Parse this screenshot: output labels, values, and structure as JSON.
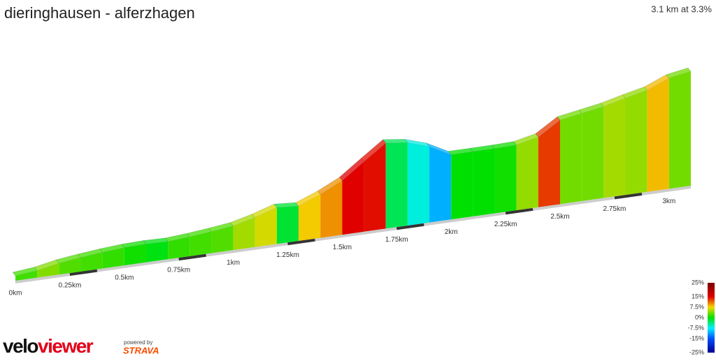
{
  "header": {
    "title": "dieringhausen - alferzhagen",
    "summary": "3.1 km at 3.3%"
  },
  "chart_data": {
    "type": "profile",
    "x": [
      0,
      0.1,
      0.2,
      0.3,
      0.4,
      0.5,
      0.6,
      0.7,
      0.8,
      0.9,
      1.0,
      1.1,
      1.2,
      1.3,
      1.4,
      1.5,
      1.6,
      1.7,
      1.8,
      1.9,
      2.0,
      2.1,
      2.2,
      2.3,
      2.4,
      2.5,
      2.6,
      2.7,
      2.8,
      2.9,
      3.0
    ],
    "values": [
      2,
      4,
      2.5,
      2,
      1.5,
      0.5,
      -0.5,
      1.5,
      2,
      2.5,
      5,
      6.5,
      -1.5,
      8,
      10,
      15,
      14.5,
      -2.5,
      -6.5,
      -10.5,
      0,
      0,
      0.5,
      4.5,
      13,
      3.5,
      3.5,
      5,
      4.5,
      8.5,
      3.5
    ],
    "xlim": [
      0,
      3.1
    ],
    "xticks": [
      {
        "value": 0,
        "label": "0km"
      },
      {
        "value": 0.25,
        "label": "0.25km"
      },
      {
        "value": 0.5,
        "label": "0.5km"
      },
      {
        "value": 0.75,
        "label": "0.75km"
      },
      {
        "value": 1,
        "label": "1km"
      },
      {
        "value": 1.25,
        "label": "1.25km"
      },
      {
        "value": 1.5,
        "label": "1.5km"
      },
      {
        "value": 1.75,
        "label": "1.75km"
      },
      {
        "value": 2,
        "label": "2km"
      },
      {
        "value": 2.25,
        "label": "2.25km"
      },
      {
        "value": 2.5,
        "label": "2.5km"
      },
      {
        "value": 2.75,
        "label": "2.75km"
      },
      {
        "value": 3,
        "label": "3km"
      }
    ],
    "color_scale": {
      "ticks": [
        {
          "value": 25,
          "label": "25%"
        },
        {
          "value": 15,
          "label": "15%"
        },
        {
          "value": 7.5,
          "label": "7.5%"
        },
        {
          "value": 0,
          "label": "0%"
        },
        {
          "value": -7.5,
          "label": "-7.5%"
        },
        {
          "value": -15,
          "label": "-15%"
        },
        {
          "value": -25,
          "label": "-25%"
        }
      ],
      "colors": [
        "#7a0000",
        "#e00000",
        "#f5d800",
        "#00e000",
        "#00f0ff",
        "#0050ff",
        "#000090"
      ]
    }
  },
  "branding": {
    "logo_left": "velo",
    "logo_right": "viewer",
    "powered": "powered by",
    "strava": "STRAVA"
  }
}
